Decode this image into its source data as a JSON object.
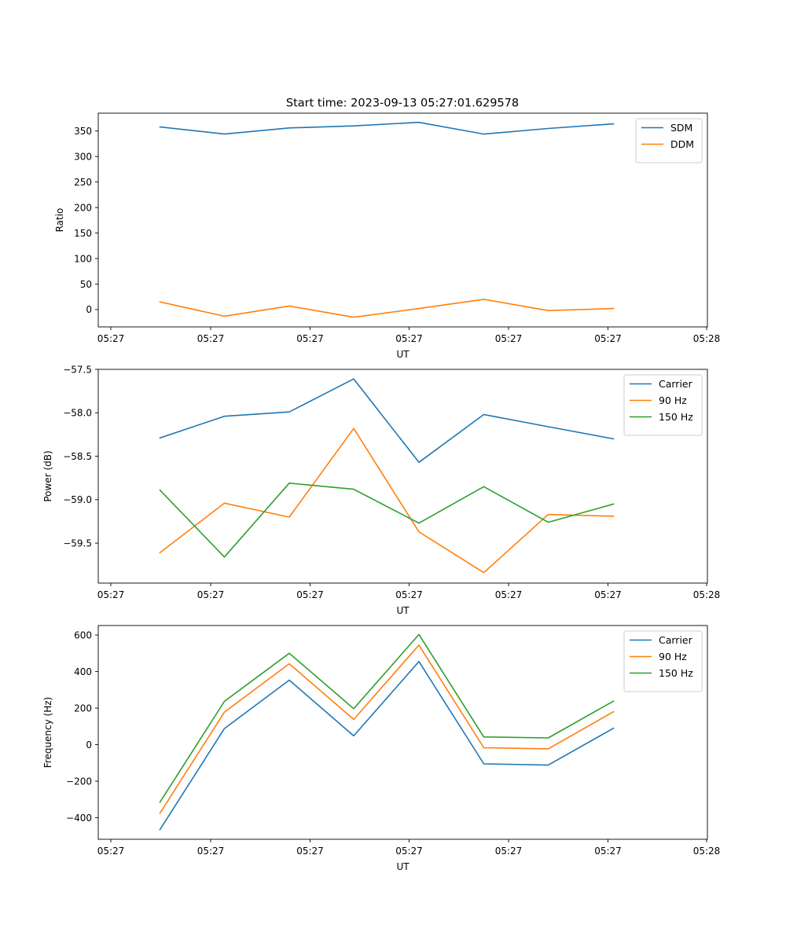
{
  "figure": {
    "title": "Start time: 2023-09-13 05:27:01.629578"
  },
  "chart_data": [
    {
      "type": "line",
      "title": "Start time: 2023-09-13 05:27:01.629578",
      "xlabel": "UT",
      "ylabel": "Ratio",
      "x_tick_labels": [
        "05:27",
        "05:27",
        "05:27",
        "05:27",
        "05:27",
        "05:27",
        "05:28"
      ],
      "y_ticks": [
        0,
        50,
        100,
        150,
        200,
        250,
        300,
        350
      ],
      "y_tick_labels": [
        "0",
        "50",
        "100",
        "150",
        "200",
        "250",
        "300",
        "350"
      ],
      "ylim": [
        -34,
        385
      ],
      "legend_position": "top-right",
      "grid": false,
      "series": [
        {
          "name": "SDM",
          "color": "#1f77b4",
          "values": [
            358,
            344,
            356,
            360,
            367,
            344,
            355,
            364
          ]
        },
        {
          "name": "DDM",
          "color": "#ff7f0e",
          "values": [
            15,
            -13,
            7,
            -15,
            2,
            20,
            -2,
            2
          ]
        }
      ]
    },
    {
      "type": "line",
      "xlabel": "UT",
      "ylabel": "Power (dB)",
      "x_tick_labels": [
        "05:27",
        "05:27",
        "05:27",
        "05:27",
        "05:27",
        "05:27",
        "05:28"
      ],
      "y_ticks": [
        -57.5,
        -58.0,
        -58.5,
        -59.0,
        -59.5
      ],
      "y_tick_labels": [
        "−57.5",
        "−58.0",
        "−58.5",
        "−59.0",
        "−59.5"
      ],
      "ylim": [
        -59.96,
        -57.5
      ],
      "legend_position": "top-right",
      "grid": false,
      "series": [
        {
          "name": "Carrier",
          "color": "#1f77b4",
          "values": [
            -58.29,
            -58.04,
            -57.99,
            -57.61,
            -58.57,
            -58.02,
            -58.16,
            -58.3
          ]
        },
        {
          "name": "90 Hz",
          "color": "#ff7f0e",
          "values": [
            -59.61,
            -59.04,
            -59.2,
            -58.18,
            -59.37,
            -59.84,
            -59.17,
            -59.19
          ]
        },
        {
          "name": "150 Hz",
          "color": "#2ca02c",
          "values": [
            -58.89,
            -59.66,
            -58.81,
            -58.88,
            -59.27,
            -58.85,
            -59.26,
            -59.05
          ]
        }
      ]
    },
    {
      "type": "line",
      "xlabel": "UT",
      "ylabel": "Frequency (Hz)",
      "x_tick_labels": [
        "05:27",
        "05:27",
        "05:27",
        "05:27",
        "05:27",
        "05:27",
        "05:28"
      ],
      "y_ticks": [
        -400,
        -200,
        0,
        200,
        400,
        600
      ],
      "y_tick_labels": [
        "−400",
        "−200",
        "0",
        "200",
        "400",
        "600"
      ],
      "ylim": [
        -518,
        652
      ],
      "legend_position": "top-right",
      "grid": false,
      "series": [
        {
          "name": "Carrier",
          "color": "#1f77b4",
          "values": [
            -465,
            88,
            353,
            48,
            455,
            -105,
            -112,
            90
          ]
        },
        {
          "name": "90 Hz",
          "color": "#ff7f0e",
          "values": [
            -375,
            178,
            443,
            138,
            545,
            -17,
            -23,
            180
          ]
        },
        {
          "name": "150 Hz",
          "color": "#2ca02c",
          "values": [
            -315,
            237,
            500,
            197,
            603,
            42,
            37,
            238
          ]
        }
      ]
    }
  ]
}
